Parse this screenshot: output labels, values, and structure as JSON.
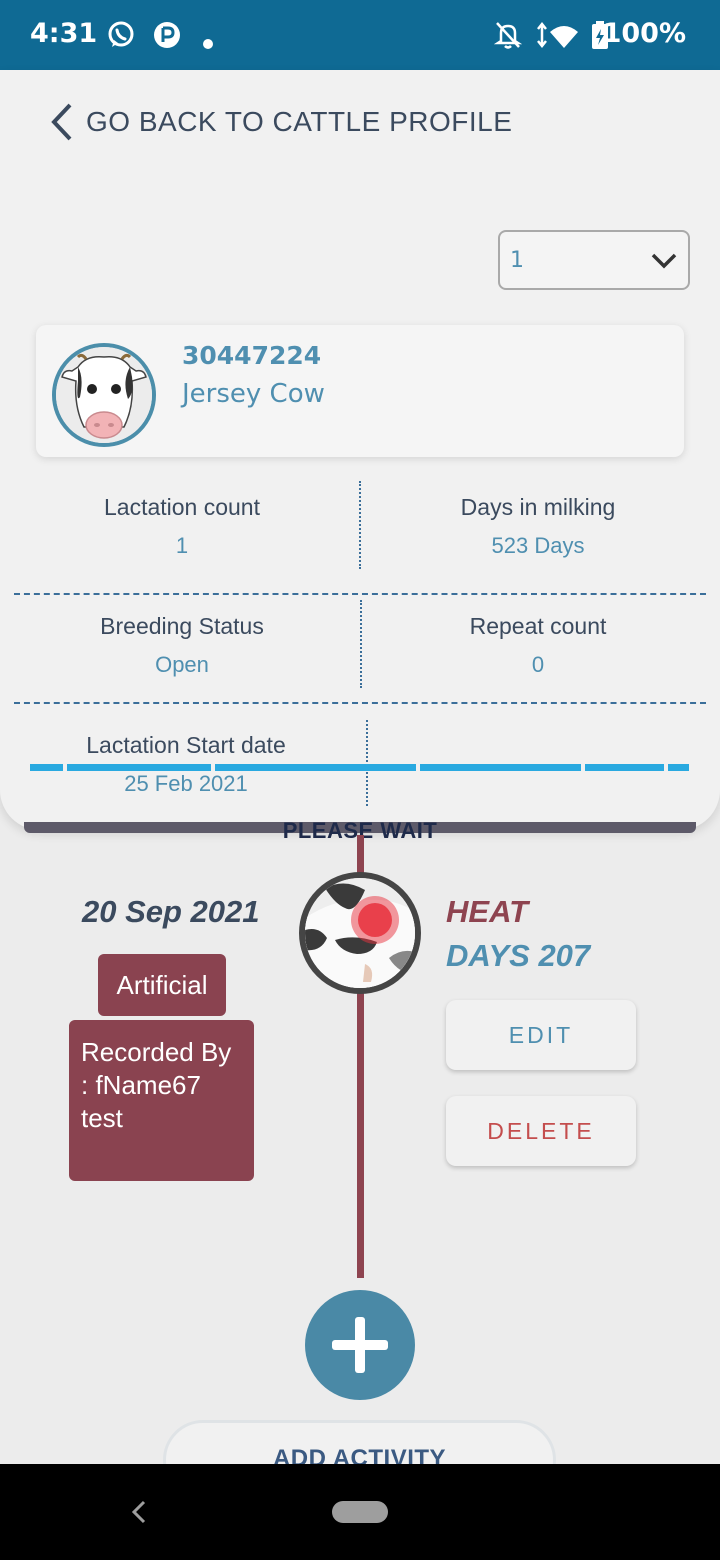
{
  "status_bar": {
    "time": "4:31",
    "battery": "100%",
    "icons": [
      "whatsapp-icon",
      "app-p-icon",
      "dot-icon",
      "bell-off-icon",
      "wifi-icon",
      "battery-icon"
    ]
  },
  "header": {
    "back_label": "GO BACK TO CATTLE PROFILE"
  },
  "lactation_select": {
    "value": "1"
  },
  "cattle": {
    "id": "30447224",
    "breed": "Jersey  Cow"
  },
  "stats": {
    "lactation_count_label": "Lactation count",
    "lactation_count_value": "1",
    "days_in_milking_label": "Days in milking",
    "days_in_milking_value": "523 Days",
    "breeding_status_label": "Breeding Status",
    "breeding_status_value": "Open",
    "repeat_count_label": "Repeat count",
    "repeat_count_value": "0",
    "lactation_start_label": "Lactation Start date",
    "lactation_start_value": "25 Feb 2021"
  },
  "loading": {
    "text": "PLEASE WAIT"
  },
  "timeline": {
    "event": {
      "date": "20 Sep 2021",
      "type": "HEAT",
      "days": "DAYS 207",
      "method": "Artificial",
      "recorded_by": "Recorded By : fName67 test",
      "edit_label": "EDIT",
      "delete_label": "DELETE"
    }
  },
  "actions": {
    "add_activity_label": "ADD ACTIVITY"
  },
  "colors": {
    "status_bar": "#0f6a94",
    "accent_blue": "#4f8fb0",
    "timeline_red": "#8e4450",
    "loader_blue": "#29a9e0"
  }
}
